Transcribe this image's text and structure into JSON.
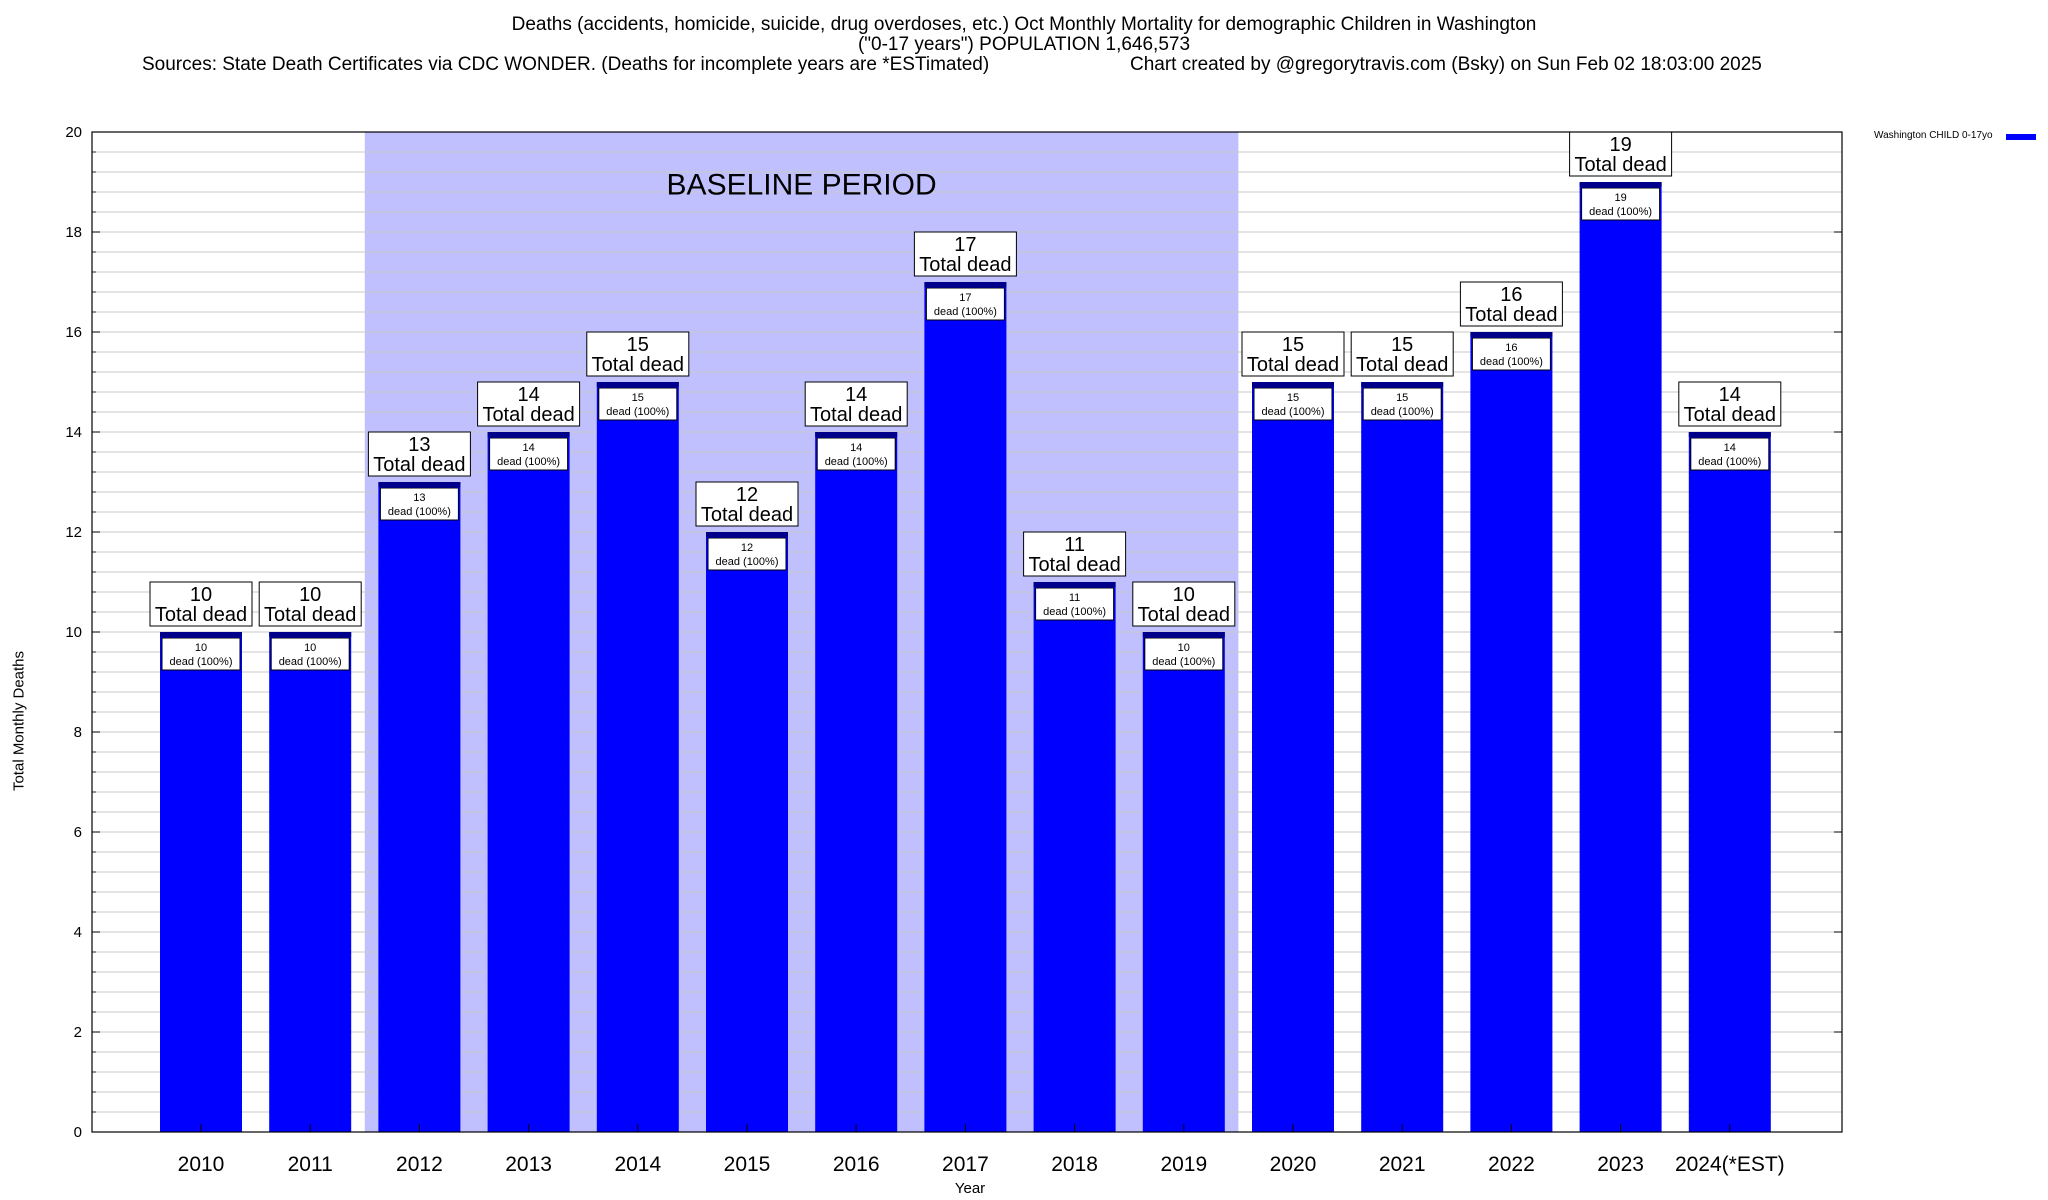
{
  "header": {
    "title_line1": "Deaths (accidents, homicide, suicide, drug overdoses, etc.) Oct Monthly Mortality for demographic Children in Washington",
    "title_line2": "(\"0-17 years\") POPULATION 1,646,573",
    "sources": "Sources: State Death Certificates via CDC WONDER. (Deaths for incomplete years are *ESTimated)",
    "credit": "Chart created by @gregorytravis.com (Bsky) on Sun Feb 02 18:03:00 2025"
  },
  "colors": {
    "bar": "#0000ff",
    "bar_cap": "#00008b",
    "baseline_shade": "#c0c0ff",
    "grid": "#c8c8c8"
  },
  "chart_data": {
    "type": "bar",
    "categories": [
      "2010",
      "2011",
      "2012",
      "2013",
      "2014",
      "2015",
      "2016",
      "2017",
      "2018",
      "2019",
      "2020",
      "2021",
      "2022",
      "2023",
      "2024(*EST)"
    ],
    "series": [
      {
        "name": "Washington CHILD 0-17yo",
        "values": [
          10,
          10,
          13,
          14,
          15,
          12,
          14,
          17,
          11,
          10,
          15,
          15,
          16,
          19,
          14
        ]
      }
    ],
    "xlabel": "Year",
    "ylabel": "Total Monthly Deaths",
    "ylim": [
      0,
      20
    ],
    "yticks": [
      0,
      2,
      4,
      6,
      8,
      10,
      12,
      14,
      16,
      18,
      20
    ],
    "minor_step": 0.4,
    "grid": true,
    "legend_position": "top-right",
    "baseline_period": {
      "label": "BASELINE PERIOD",
      "from": "2012",
      "to": "2019"
    },
    "total_label_text": "Total dead",
    "inner_label_text": "dead (100%)"
  }
}
